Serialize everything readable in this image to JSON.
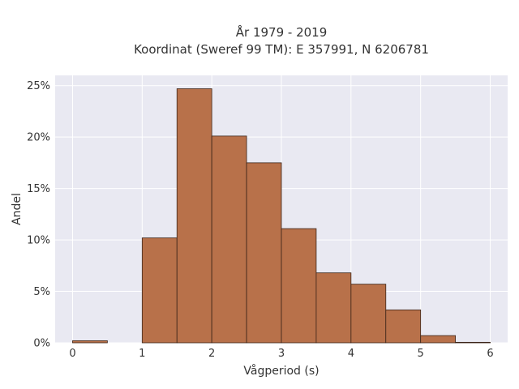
{
  "chart_data": {
    "type": "bar",
    "title_line1": "År 1979 - 2019",
    "title_line2": "Koordinat (Sweref 99 TM): E 357991, N 6206781",
    "xlabel": "Vågperiod (s)",
    "ylabel": "Andel",
    "xlim": [
      -0.25,
      6.25
    ],
    "ylim": [
      0,
      0.26
    ],
    "xticks": [
      0,
      1,
      2,
      3,
      4,
      5,
      6
    ],
    "yticks": [
      0,
      0.05,
      0.1,
      0.15,
      0.2,
      0.25
    ],
    "ytick_labels": [
      "0%",
      "5%",
      "10%",
      "15%",
      "20%",
      "25%"
    ],
    "grid": true,
    "bar_color": "#b8714a",
    "bar_edge_color": "#3b2418",
    "bin_width": 0.5,
    "bins": [
      {
        "x0": 0.0,
        "value": 0.002
      },
      {
        "x0": 0.5,
        "value": 0.0
      },
      {
        "x0": 1.0,
        "value": 0.102
      },
      {
        "x0": 1.5,
        "value": 0.247
      },
      {
        "x0": 2.0,
        "value": 0.201
      },
      {
        "x0": 2.5,
        "value": 0.175
      },
      {
        "x0": 3.0,
        "value": 0.111
      },
      {
        "x0": 3.5,
        "value": 0.068
      },
      {
        "x0": 4.0,
        "value": 0.057
      },
      {
        "x0": 4.5,
        "value": 0.032
      },
      {
        "x0": 5.0,
        "value": 0.007
      },
      {
        "x0": 5.5,
        "value": 0.0005
      }
    ]
  }
}
